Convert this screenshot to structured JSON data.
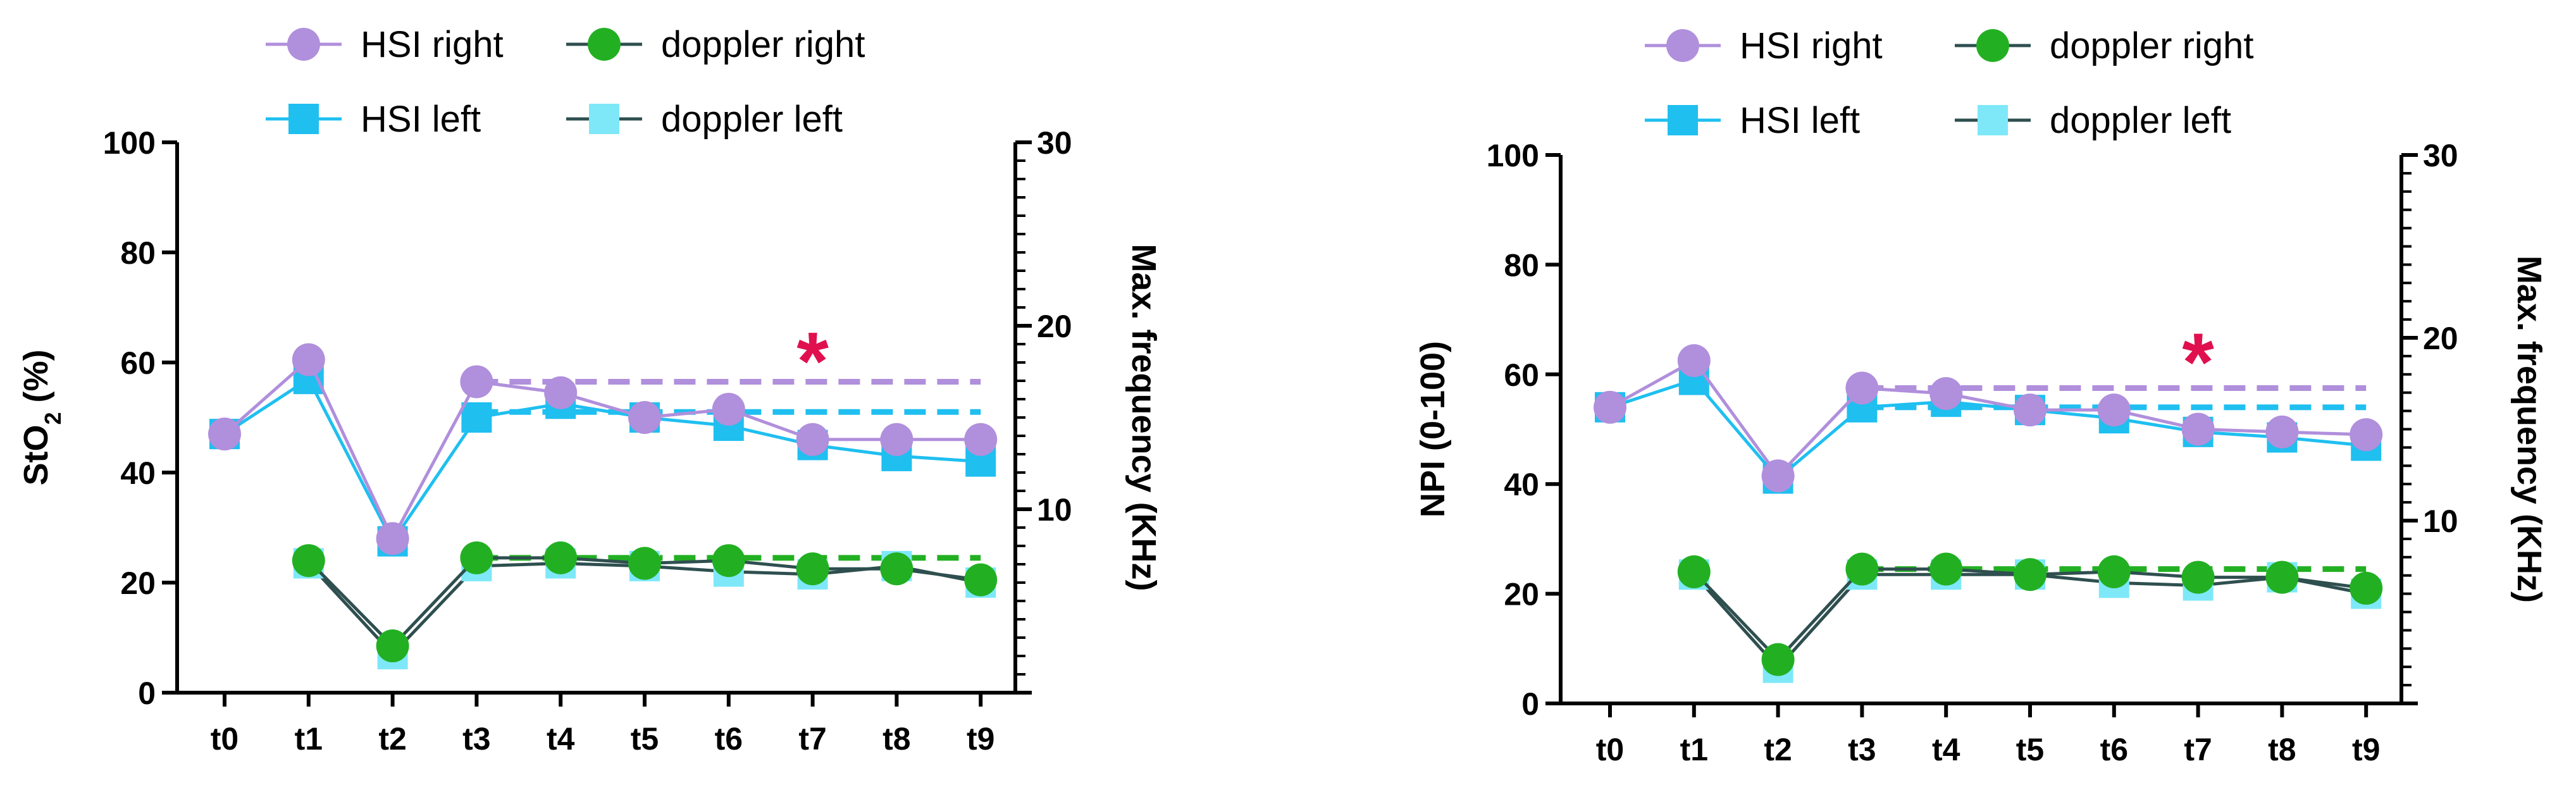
{
  "chart_data": [
    {
      "type": "line",
      "categories": [
        "t0",
        "t1",
        "t2",
        "t3",
        "t4",
        "t5",
        "t6",
        "t7",
        "t8",
        "t9"
      ],
      "left_axis": {
        "title": "StO",
        "title_sub": "2",
        "title_suffix": " (%)",
        "range": [
          0,
          100
        ],
        "ticks": [
          0,
          20,
          40,
          60,
          80,
          100
        ]
      },
      "right_axis": {
        "title": "Max. frequency (KHz)",
        "range": [
          0,
          30
        ],
        "ticks": [
          10,
          20,
          30
        ]
      },
      "legend": {
        "placement": "top",
        "items": [
          {
            "name": "HSI right",
            "series": 0
          },
          {
            "name": "doppler right",
            "series": 2
          },
          {
            "name": "HSI left",
            "series": 1
          },
          {
            "name": "doppler left",
            "series": 3
          }
        ]
      },
      "series": [
        {
          "name": "HSI right",
          "axis": "left",
          "color": "#b08fdc",
          "marker": "circle",
          "values": [
            47,
            60.5,
            28,
            56.5,
            54.5,
            50,
            51.5,
            46,
            46,
            46
          ]
        },
        {
          "name": "HSI left",
          "axis": "left",
          "color": "#1fbff0",
          "marker": "square",
          "values": [
            47,
            57,
            27.5,
            50,
            52.5,
            50,
            48.5,
            45,
            43,
            42
          ]
        },
        {
          "name": "doppler right",
          "axis": "left",
          "color": "#22b022",
          "marker": "circle",
          "values": [
            null,
            24,
            8.5,
            24.5,
            24.5,
            23.5,
            24,
            22.5,
            22.5,
            20.5
          ]
        },
        {
          "name": "doppler left",
          "axis": "left",
          "color": "#7ee8f8",
          "marker": "square",
          "values": [
            null,
            23.5,
            7,
            23,
            23.5,
            23,
            22,
            21.5,
            23,
            20
          ]
        }
      ],
      "reference_lines": [
        {
          "name": "HSI right mean t3-t9",
          "color": "#b08fdc",
          "from": "t3",
          "to": "t9",
          "value": 56.5
        },
        {
          "name": "HSI left mean t3-t9",
          "color": "#1fbff0",
          "from": "t3",
          "to": "t9",
          "value": 51
        },
        {
          "name": "doppler right mean t3-t9",
          "color": "#22b022",
          "from": "t3",
          "to": "t9",
          "value": 24.5
        }
      ],
      "annotations": [
        {
          "text": "*",
          "at": "t7",
          "value": 62,
          "color": "#e0104f"
        }
      ]
    },
    {
      "type": "line",
      "categories": [
        "t0",
        "t1",
        "t2",
        "t3",
        "t4",
        "t5",
        "t6",
        "t7",
        "t8",
        "t9"
      ],
      "left_axis": {
        "title": "NPI  (0-100)",
        "range": [
          0,
          100
        ],
        "ticks": [
          0,
          20,
          40,
          60,
          80,
          100
        ]
      },
      "right_axis": {
        "title": "Max. frequency (KHz)",
        "range": [
          0,
          30
        ],
        "ticks": [
          10,
          20,
          30
        ]
      },
      "legend": {
        "placement": "top",
        "items": [
          {
            "name": "HSI right",
            "series": 0
          },
          {
            "name": "doppler right",
            "series": 2
          },
          {
            "name": "HSI left",
            "series": 1
          },
          {
            "name": "doppler left",
            "series": 3
          }
        ]
      },
      "series": [
        {
          "name": "HSI right",
          "axis": "left",
          "color": "#b08fdc",
          "marker": "circle",
          "values": [
            54,
            62.5,
            41.5,
            57.5,
            56.5,
            53.5,
            53.5,
            50,
            49.5,
            49
          ]
        },
        {
          "name": "HSI left",
          "axis": "left",
          "color": "#1fbff0",
          "marker": "square",
          "values": [
            54,
            59,
            41,
            54,
            55,
            53.5,
            52,
            49.5,
            48.5,
            47
          ]
        },
        {
          "name": "doppler right",
          "axis": "left",
          "color": "#22b022",
          "marker": "circle",
          "values": [
            null,
            24,
            8,
            24.5,
            24.5,
            23.5,
            24,
            23,
            23,
            21
          ]
        },
        {
          "name": "doppler left",
          "axis": "left",
          "color": "#7ee8f8",
          "marker": "square",
          "values": [
            null,
            23.5,
            6.5,
            23.5,
            23.5,
            23.5,
            22,
            21.5,
            23,
            20
          ]
        }
      ],
      "reference_lines": [
        {
          "name": "HSI right mean t3-t9",
          "color": "#b08fdc",
          "from": "t3",
          "to": "t9",
          "value": 57.5
        },
        {
          "name": "HSI left mean t3-t9",
          "color": "#1fbff0",
          "from": "t3",
          "to": "t9",
          "value": 54
        },
        {
          "name": "doppler right mean t3-t9",
          "color": "#22b022",
          "from": "t3",
          "to": "t9",
          "value": 24.5
        }
      ],
      "annotations": [
        {
          "text": "*",
          "at": "t7",
          "value": 64,
          "color": "#e0104f"
        }
      ]
    }
  ]
}
